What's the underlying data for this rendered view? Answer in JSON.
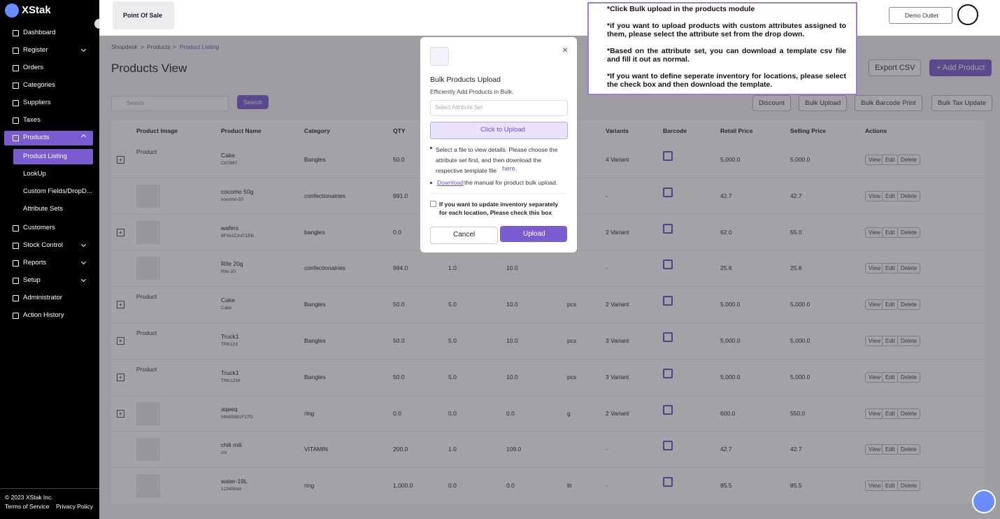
{
  "sidebar": {
    "brand": "XStak",
    "nav": [
      {
        "label": "Dashboard",
        "caret": false
      },
      {
        "label": "Register",
        "caret": true
      },
      {
        "label": "Orders",
        "caret": false
      },
      {
        "label": "Categories",
        "caret": false
      },
      {
        "label": "Suppliers",
        "caret": false
      },
      {
        "label": "Taxes",
        "caret": false
      },
      {
        "label": "Products",
        "caret": true,
        "active": true,
        "children": [
          "Product Listing",
          "LookUp",
          "Custom Fields/DropD...",
          "Attribute Sets"
        ]
      },
      {
        "label": "Customers",
        "caret": false
      },
      {
        "label": "Stock Control",
        "caret": true
      },
      {
        "label": "Reports",
        "caret": true
      },
      {
        "label": "Setup",
        "caret": true
      },
      {
        "label": "Administrator",
        "caret": false
      },
      {
        "label": "Action History",
        "caret": false
      }
    ],
    "copyright": "© 2023 XStak Inc.",
    "terms": "Terms of Service",
    "privacy": "Privacy Policy"
  },
  "topbar": {
    "module": "Point Of Sale",
    "outlet": "Demo Outlet"
  },
  "annotation": [
    "*Click Bulk upload in the products module",
    "*if you want to upload products with custom attributes assigned to them, please select the attribute set from the drop down.",
    "*Based  on the attribute set, you can download a template csv file and fill it out as normal.",
    "*If you want to define seperate inventory for locations, please select the check box and then download the template."
  ],
  "breadcrumb": [
    "Shopdesk",
    "Products",
    "Product Listing"
  ],
  "page_title": "Products View",
  "buttons": {
    "export": "Export CSV",
    "add": "+ Add Product",
    "discount": "Discount",
    "bulk_upload": "Bulk Upload",
    "bulk_barcode": "Bulk Barcode Print",
    "bulk_tax": "Bulk Tax Update",
    "search_placeholder": "Search",
    "search": "Search"
  },
  "table": {
    "headers": [
      "Product Image",
      "Product Name",
      "Category",
      "QTY",
      null,
      null,
      null,
      "Variants",
      "Barcode",
      "Retail Price",
      "Selling Price",
      "Actions"
    ],
    "actions": [
      "View",
      "Edit",
      "Delete"
    ],
    "rows": [
      [
        "Product",
        "Cake",
        "CK0987",
        "Bangles",
        "50.0",
        null,
        null,
        null,
        "4 Variant",
        "5,000.0",
        "5,000.0"
      ],
      [
        null,
        "cocomo 50g",
        "cocomo-50",
        "confectionairies",
        "991.0",
        null,
        null,
        null,
        "-",
        "42.7",
        "42.7"
      ],
      [
        null,
        "wafers",
        "6F561CA471EB",
        "bangles",
        "0.0",
        null,
        null,
        null,
        "2 Variant",
        "62.0",
        "55.0"
      ],
      [
        null,
        "Rite 20g",
        "Rite-20",
        "confectionairies",
        "984.0",
        "1.0",
        "10.0",
        null,
        "-",
        "25.6",
        "25.6"
      ],
      [
        "Product",
        "Cake",
        "Cake",
        "Bangles",
        "50.0",
        "5.0",
        "10.0",
        "pcs",
        "2 Variant",
        "5,000.0",
        "5,000.0"
      ],
      [
        "Product",
        "Truck1",
        "TRK123",
        "Bangles",
        "50.0",
        "5.0",
        "10.0",
        "pcs",
        "3 Variant",
        "5,000.0",
        "5,000.0"
      ],
      [
        "Product",
        "Truck1",
        "TRK1234",
        "Bangles",
        "50.0",
        "5.0",
        "10.0",
        "pcs",
        "3 Variant",
        "5,000.0",
        "5,000.0"
      ],
      [
        null,
        "aqeeq",
        "596858B1F27D",
        "ring",
        "0.0",
        "0.0",
        "0.0",
        "g",
        "2 Variant",
        "600.0",
        "550.0"
      ],
      [
        null,
        "chili mili",
        "chi",
        "VITAMIN",
        "200.0",
        "1.0",
        "109.0",
        null,
        "-",
        "42.7",
        "42.7"
      ],
      [
        null,
        "water-19L",
        "123456dd",
        "ring",
        "1,000.0",
        "0.0",
        "0.0",
        "ltr",
        "-",
        "85.5",
        "85.5"
      ]
    ]
  },
  "modal": {
    "title": "Bulk Products Upload",
    "subtitle": "Efficiently Add Products in Bulk.",
    "select_placeholder": "Select Attribute Set",
    "upload_area": "Click to Upload",
    "note1": "Select a file to view details. Please choose the attribute set first, and then download the respective template file",
    "note1_link": "here.",
    "note2_link": "Download",
    "note2": "the manual for product bulk upload.",
    "checkbox": "If you want to update inventory separately for each location, Please check this box",
    "cancel": "Cancel",
    "upload": "Upload"
  }
}
